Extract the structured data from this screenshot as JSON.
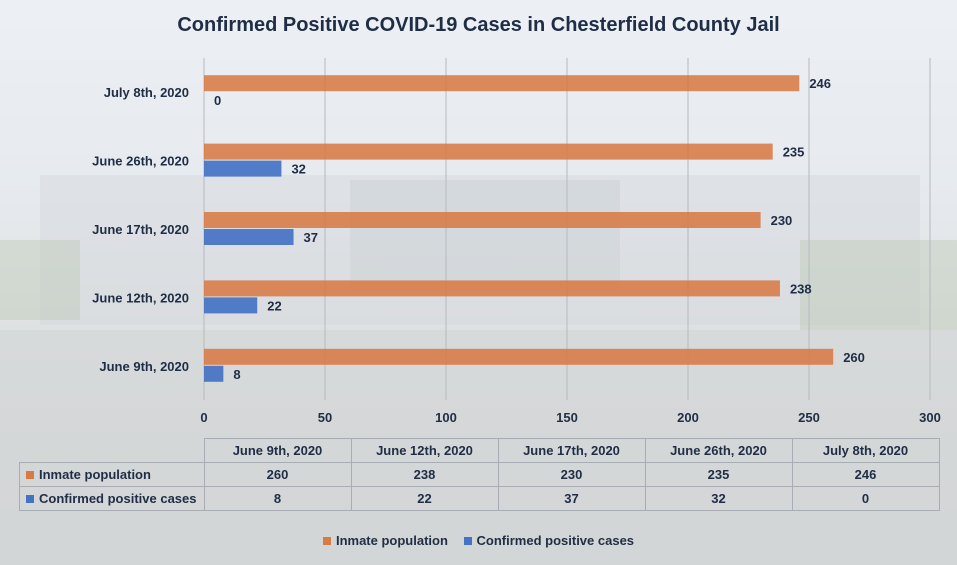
{
  "colors": {
    "inmate": "#d87a44",
    "positive": "#4472c4"
  },
  "chart_data": {
    "type": "bar",
    "orientation": "horizontal",
    "title": "Confirmed Positive COVID-19 Cases in Chesterfield County Jail",
    "categories": [
      "June 9th, 2020",
      "June 12th, 2020",
      "June 17th, 2020",
      "June 26th, 2020",
      "July 8th, 2020"
    ],
    "series": [
      {
        "name": "Inmate population",
        "values": [
          260,
          238,
          230,
          235,
          246
        ]
      },
      {
        "name": "Confirmed positive cases",
        "values": [
          8,
          22,
          37,
          32,
          0
        ]
      }
    ],
    "xlim": [
      0,
      300
    ],
    "xticks": [
      0,
      50,
      100,
      150,
      200,
      250,
      300
    ],
    "grid": true,
    "legend": "bottom",
    "data_table": true
  }
}
